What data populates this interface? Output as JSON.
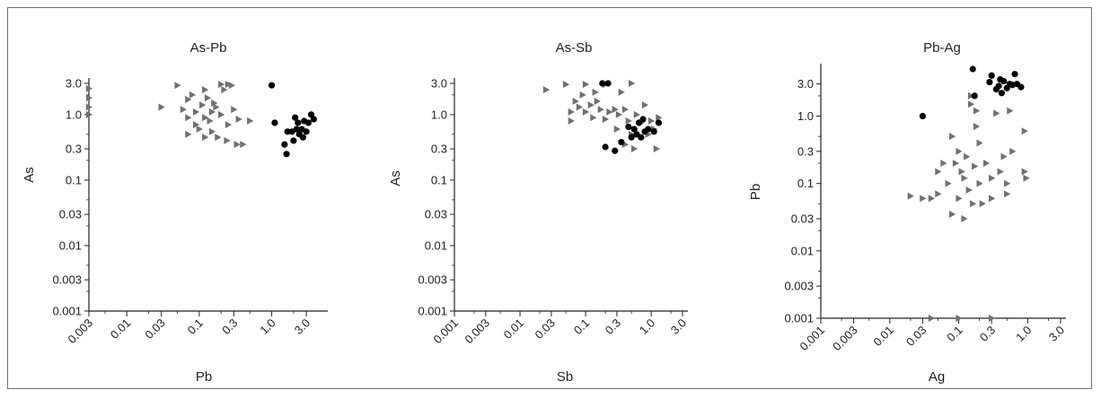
{
  "chart_data": [
    {
      "type": "scatter",
      "title": "As-Pb",
      "xlabel": "Pb",
      "ylabel": "As",
      "xscale": "log",
      "yscale": "log",
      "xlim": [
        0.003,
        5.0
      ],
      "ylim": [
        0.001,
        3.0
      ],
      "xticks": [
        "0.003",
        "0.01",
        "0.03",
        "0.1",
        "0.3",
        "1.0",
        "3.0"
      ],
      "yticks": [
        "3.0",
        "1.0",
        "0.3",
        "0.1",
        "0.03",
        "0.01",
        "0.003",
        "0.001"
      ],
      "grid": false,
      "series": [
        {
          "marker": "triangle",
          "color": "#707070",
          "points": [
            [
              0.003,
              2.5
            ],
            [
              0.003,
              1.8
            ],
            [
              0.003,
              1.3
            ],
            [
              0.003,
              1.0
            ],
            [
              0.05,
              2.8
            ],
            [
              0.03,
              1.3
            ],
            [
              0.06,
              1.2
            ],
            [
              0.07,
              1.7
            ],
            [
              0.07,
              0.9
            ],
            [
              0.07,
              0.5
            ],
            [
              0.08,
              2.0
            ],
            [
              0.09,
              1.1
            ],
            [
              0.09,
              0.7
            ],
            [
              0.1,
              0.6
            ],
            [
              0.11,
              1.4
            ],
            [
              0.12,
              2.4
            ],
            [
              0.12,
              0.9
            ],
            [
              0.13,
              1.8
            ],
            [
              0.14,
              0.8
            ],
            [
              0.15,
              1.1
            ],
            [
              0.15,
              0.55
            ],
            [
              0.16,
              1.5
            ],
            [
              0.17,
              1.3
            ],
            [
              0.2,
              2.9
            ],
            [
              0.22,
              2.4
            ],
            [
              0.2,
              1.0
            ],
            [
              0.25,
              0.7
            ],
            [
              0.25,
              2.9
            ],
            [
              0.24,
              0.4
            ],
            [
              0.28,
              2.8
            ],
            [
              0.3,
              1.2
            ],
            [
              0.35,
              0.85
            ],
            [
              0.33,
              0.35
            ],
            [
              0.4,
              0.35
            ],
            [
              0.5,
              0.8
            ],
            [
              0.18,
              0.45
            ],
            [
              0.12,
              0.45
            ]
          ]
        },
        {
          "marker": "circle",
          "color": "#000000",
          "points": [
            [
              1.0,
              2.8
            ],
            [
              1.1,
              0.75
            ],
            [
              1.5,
              0.35
            ],
            [
              1.6,
              0.25
            ],
            [
              1.65,
              0.55
            ],
            [
              1.9,
              0.55
            ],
            [
              2.0,
              0.4
            ],
            [
              2.2,
              0.6
            ],
            [
              2.3,
              0.75
            ],
            [
              2.4,
              0.5
            ],
            [
              2.6,
              0.6
            ],
            [
              2.7,
              0.45
            ],
            [
              2.8,
              0.8
            ],
            [
              3.0,
              0.55
            ],
            [
              3.2,
              0.75
            ],
            [
              3.5,
              1.0
            ],
            [
              3.8,
              0.85
            ],
            [
              2.1,
              0.9
            ]
          ]
        }
      ]
    },
    {
      "type": "scatter",
      "title": "As-Sb",
      "xlabel": "Sb",
      "ylabel": "As",
      "xscale": "log",
      "yscale": "log",
      "xlim": [
        0.001,
        3.0
      ],
      "ylim": [
        0.001,
        3.0
      ],
      "xticks": [
        "0.001",
        "0.003",
        "0.01",
        "0.03",
        "0.1",
        "0.3",
        "1.0",
        "3.0"
      ],
      "yticks": [
        "3.0",
        "1.0",
        "0.3",
        "0.1",
        "0.03",
        "0.01",
        "0.003",
        "0.001"
      ],
      "grid": false,
      "series": [
        {
          "marker": "triangle",
          "color": "#707070",
          "points": [
            [
              0.025,
              2.4
            ],
            [
              0.05,
              2.9
            ],
            [
              0.07,
              1.6
            ],
            [
              0.06,
              1.1
            ],
            [
              0.06,
              0.8
            ],
            [
              0.08,
              1.3
            ],
            [
              0.09,
              2.0
            ],
            [
              0.1,
              1.1
            ],
            [
              0.1,
              2.9
            ],
            [
              0.12,
              1.4
            ],
            [
              0.13,
              0.9
            ],
            [
              0.14,
              2.2
            ],
            [
              0.15,
              1.6
            ],
            [
              0.17,
              1.2
            ],
            [
              0.2,
              2.9
            ],
            [
              0.2,
              0.85
            ],
            [
              0.23,
              1.1
            ],
            [
              0.28,
              1.2
            ],
            [
              0.3,
              0.6
            ],
            [
              0.32,
              1.0
            ],
            [
              0.35,
              2.2
            ],
            [
              0.4,
              1.2
            ],
            [
              0.45,
              0.8
            ],
            [
              0.5,
              3.0
            ],
            [
              0.5,
              0.5
            ],
            [
              0.6,
              1.0
            ],
            [
              0.7,
              0.75
            ],
            [
              0.8,
              1.4
            ],
            [
              0.9,
              0.5
            ],
            [
              1.0,
              0.8
            ],
            [
              1.1,
              0.6
            ],
            [
              1.2,
              0.3
            ],
            [
              1.3,
              0.9
            ],
            [
              0.55,
              0.3
            ],
            [
              0.4,
              0.35
            ]
          ]
        },
        {
          "marker": "circle",
          "color": "#000000",
          "points": [
            [
              0.18,
              3.0
            ],
            [
              0.22,
              3.0
            ],
            [
              0.2,
              0.32
            ],
            [
              0.28,
              0.28
            ],
            [
              0.35,
              0.38
            ],
            [
              0.5,
              0.45
            ],
            [
              0.55,
              0.6
            ],
            [
              0.6,
              0.5
            ],
            [
              0.65,
              0.75
            ],
            [
              0.7,
              0.45
            ],
            [
              0.8,
              0.55
            ],
            [
              0.9,
              0.6
            ],
            [
              1.1,
              0.55
            ],
            [
              1.3,
              0.75
            ],
            [
              0.45,
              0.65
            ],
            [
              0.75,
              0.85
            ]
          ]
        }
      ]
    },
    {
      "type": "scatter",
      "title": "Pb-Ag",
      "xlabel": "Ag",
      "ylabel": "Pb",
      "xscale": "log",
      "yscale": "log",
      "xlim": [
        0.001,
        3.0
      ],
      "ylim": [
        0.001,
        5.0
      ],
      "xticks": [
        "0.001",
        "0.003",
        "0.01",
        "0.03",
        "0.1",
        "0.3",
        "1.0",
        "3.0"
      ],
      "yticks": [
        "3.0",
        "1.0",
        "0.3",
        "0.1",
        "0.03",
        "0.01",
        "0.003",
        "0.001"
      ],
      "grid": false,
      "series": [
        {
          "marker": "triangle",
          "color": "#707070",
          "points": [
            [
              0.02,
              0.065
            ],
            [
              0.03,
              0.06
            ],
            [
              0.04,
              0.06
            ],
            [
              0.05,
              0.15
            ],
            [
              0.05,
              0.07
            ],
            [
              0.06,
              0.2
            ],
            [
              0.07,
              0.1
            ],
            [
              0.08,
              0.5
            ],
            [
              0.08,
              0.035
            ],
            [
              0.09,
              0.2
            ],
            [
              0.1,
              0.3
            ],
            [
              0.1,
              0.06
            ],
            [
              0.11,
              0.15
            ],
            [
              0.12,
              0.12
            ],
            [
              0.12,
              0.03
            ],
            [
              0.13,
              0.25
            ],
            [
              0.14,
              0.08
            ],
            [
              0.15,
              2.0
            ],
            [
              0.15,
              1.5
            ],
            [
              0.16,
              0.05
            ],
            [
              0.17,
              0.18
            ],
            [
              0.18,
              1.2
            ],
            [
              0.18,
              0.7
            ],
            [
              0.2,
              0.4
            ],
            [
              0.2,
              0.1
            ],
            [
              0.22,
              0.05
            ],
            [
              0.25,
              0.2
            ],
            [
              0.3,
              0.12
            ],
            [
              0.3,
              0.06
            ],
            [
              0.35,
              1.1
            ],
            [
              0.4,
              0.15
            ],
            [
              0.45,
              0.25
            ],
            [
              0.5,
              0.1
            ],
            [
              0.5,
              0.07
            ],
            [
              0.55,
              1.2
            ],
            [
              0.6,
              0.3
            ],
            [
              0.9,
              0.6
            ],
            [
              0.9,
              0.15
            ],
            [
              0.95,
              0.12
            ],
            [
              0.04,
              0.001
            ],
            [
              0.1,
              0.001
            ],
            [
              0.3,
              0.001
            ]
          ]
        },
        {
          "marker": "circle",
          "color": "#000000",
          "points": [
            [
              0.03,
              1.0
            ],
            [
              0.16,
              5.0
            ],
            [
              0.17,
              2.0
            ],
            [
              0.28,
              3.2
            ],
            [
              0.3,
              4.0
            ],
            [
              0.35,
              2.5
            ],
            [
              0.38,
              2.8
            ],
            [
              0.42,
              2.2
            ],
            [
              0.45,
              3.3
            ],
            [
              0.5,
              2.6
            ],
            [
              0.55,
              3.0
            ],
            [
              0.6,
              2.9
            ],
            [
              0.65,
              4.2
            ],
            [
              0.7,
              3.0
            ],
            [
              0.8,
              2.7
            ],
            [
              0.4,
              3.5
            ]
          ]
        }
      ]
    }
  ]
}
